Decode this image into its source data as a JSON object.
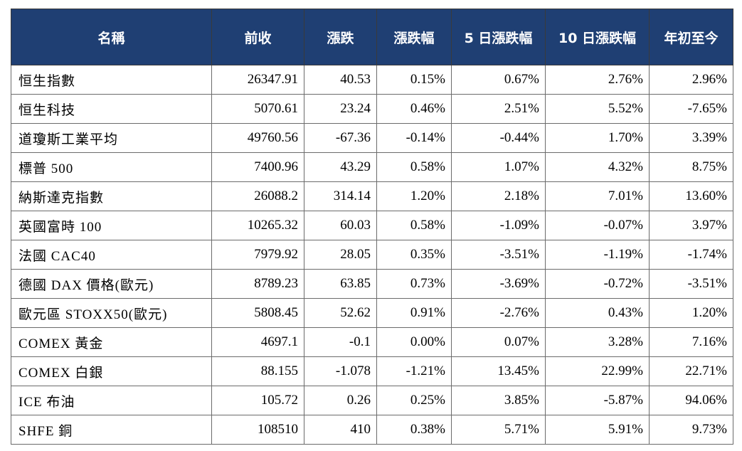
{
  "headers": [
    "名稱",
    "前收",
    "漲跌",
    "漲跌幅",
    "5 日漲跌幅",
    "10 日漲跌幅",
    "年初至今"
  ],
  "rows": [
    {
      "name": "恒生指數",
      "prev_close": "26347.91",
      "change": "40.53",
      "change_pct": "0.15%",
      "d5_pct": "0.67%",
      "d10_pct": "2.76%",
      "ytd_pct": "2.96%"
    },
    {
      "name": "恒生科技",
      "prev_close": "5070.61",
      "change": "23.24",
      "change_pct": "0.46%",
      "d5_pct": "2.51%",
      "d10_pct": "5.52%",
      "ytd_pct": "-7.65%"
    },
    {
      "name": "道瓊斯工業平均",
      "prev_close": "49760.56",
      "change": "-67.36",
      "change_pct": "-0.14%",
      "d5_pct": "-0.44%",
      "d10_pct": "1.70%",
      "ytd_pct": "3.39%"
    },
    {
      "name": "標普 500",
      "prev_close": "7400.96",
      "change": "43.29",
      "change_pct": "0.58%",
      "d5_pct": "1.07%",
      "d10_pct": "4.32%",
      "ytd_pct": "8.75%"
    },
    {
      "name": "納斯達克指數",
      "prev_close": "26088.2",
      "change": "314.14",
      "change_pct": "1.20%",
      "d5_pct": "2.18%",
      "d10_pct": "7.01%",
      "ytd_pct": "13.60%"
    },
    {
      "name": "英國富時 100",
      "prev_close": "10265.32",
      "change": "60.03",
      "change_pct": "0.58%",
      "d5_pct": "-1.09%",
      "d10_pct": "-0.07%",
      "ytd_pct": "3.97%"
    },
    {
      "name": "法國 CAC40",
      "prev_close": "7979.92",
      "change": "28.05",
      "change_pct": "0.35%",
      "d5_pct": "-3.51%",
      "d10_pct": "-1.19%",
      "ytd_pct": "-1.74%"
    },
    {
      "name": "德國 DAX 價格(歐元)",
      "prev_close": "8789.23",
      "change": "63.85",
      "change_pct": "0.73%",
      "d5_pct": "-3.69%",
      "d10_pct": "-0.72%",
      "ytd_pct": "-3.51%"
    },
    {
      "name": "歐元區 STOXX50(歐元)",
      "prev_close": "5808.45",
      "change": "52.62",
      "change_pct": "0.91%",
      "d5_pct": "-2.76%",
      "d10_pct": "0.43%",
      "ytd_pct": "1.20%"
    },
    {
      "name": "COMEX 黃金",
      "prev_close": "4697.1",
      "change": "-0.1",
      "change_pct": "0.00%",
      "d5_pct": "0.07%",
      "d10_pct": "3.28%",
      "ytd_pct": "7.16%"
    },
    {
      "name": "COMEX 白銀",
      "prev_close": "88.155",
      "change": "-1.078",
      "change_pct": "-1.21%",
      "d5_pct": "13.45%",
      "d10_pct": "22.99%",
      "ytd_pct": "22.71%"
    },
    {
      "name": "ICE 布油",
      "prev_close": "105.72",
      "change": "0.26",
      "change_pct": "0.25%",
      "d5_pct": "3.85%",
      "d10_pct": "-5.87%",
      "ytd_pct": "94.06%"
    },
    {
      "name": "SHFE 銅",
      "prev_close": "108510",
      "change": "410",
      "change_pct": "0.38%",
      "d5_pct": "5.71%",
      "d10_pct": "5.91%",
      "ytd_pct": "9.73%"
    }
  ]
}
